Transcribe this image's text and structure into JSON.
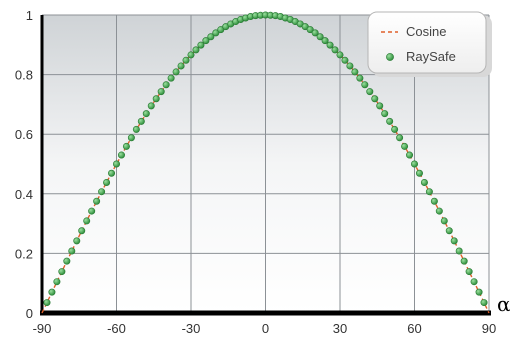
{
  "chart_data": {
    "type": "line",
    "title": "",
    "xlabel": "α",
    "ylabel": "",
    "xlim": [
      -90,
      90
    ],
    "ylim": [
      0,
      1
    ],
    "x_ticks": [
      "-90",
      "-60",
      "-30",
      "0",
      "30",
      "60",
      "90"
    ],
    "y_ticks": [
      "0",
      "0.2",
      "0.4",
      "0.6",
      "0.8",
      "1"
    ],
    "grid": true,
    "legend_position": "top-right",
    "series": [
      {
        "name": "Cosine",
        "kind": "dashed-line",
        "color": "#e0602a",
        "function": "cos(x)"
      },
      {
        "name": "RaySafe",
        "kind": "markers",
        "color": "#3aa04a",
        "x": [
          -88,
          -86,
          -84,
          -82,
          -80,
          -78,
          -76,
          -74,
          -72,
          -70,
          -68,
          -66,
          -64,
          -62,
          -60,
          -58,
          -56,
          -54,
          -52,
          -50,
          -48,
          -46,
          -44,
          -42,
          -40,
          -38,
          -36,
          -34,
          -32,
          -30,
          -28,
          -26,
          -24,
          -22,
          -20,
          -18,
          -16,
          -14,
          -12,
          -10,
          -8,
          -6,
          -4,
          -2,
          0,
          2,
          4,
          6,
          8,
          10,
          12,
          14,
          16,
          18,
          20,
          22,
          24,
          26,
          28,
          30,
          32,
          34,
          36,
          38,
          40,
          42,
          44,
          46,
          48,
          50,
          52,
          54,
          56,
          58,
          60,
          62,
          64,
          66,
          68,
          70,
          72,
          74,
          76,
          78,
          80,
          82,
          84,
          86,
          88
        ],
        "y": [
          0.035,
          0.07,
          0.105,
          0.139,
          0.174,
          0.208,
          0.242,
          0.276,
          0.309,
          0.342,
          0.375,
          0.407,
          0.438,
          0.469,
          0.5,
          0.53,
          0.559,
          0.588,
          0.616,
          0.643,
          0.669,
          0.695,
          0.719,
          0.743,
          0.766,
          0.788,
          0.809,
          0.829,
          0.848,
          0.866,
          0.883,
          0.899,
          0.914,
          0.927,
          0.94,
          0.951,
          0.961,
          0.97,
          0.978,
          0.985,
          0.99,
          0.995,
          0.998,
          0.999,
          1.0,
          0.999,
          0.998,
          0.995,
          0.99,
          0.985,
          0.978,
          0.97,
          0.961,
          0.951,
          0.94,
          0.927,
          0.914,
          0.899,
          0.883,
          0.866,
          0.848,
          0.829,
          0.809,
          0.788,
          0.766,
          0.743,
          0.719,
          0.695,
          0.669,
          0.643,
          0.616,
          0.588,
          0.559,
          0.53,
          0.5,
          0.469,
          0.438,
          0.407,
          0.375,
          0.342,
          0.309,
          0.276,
          0.242,
          0.208,
          0.174,
          0.139,
          0.105,
          0.07,
          0.035
        ]
      }
    ]
  }
}
